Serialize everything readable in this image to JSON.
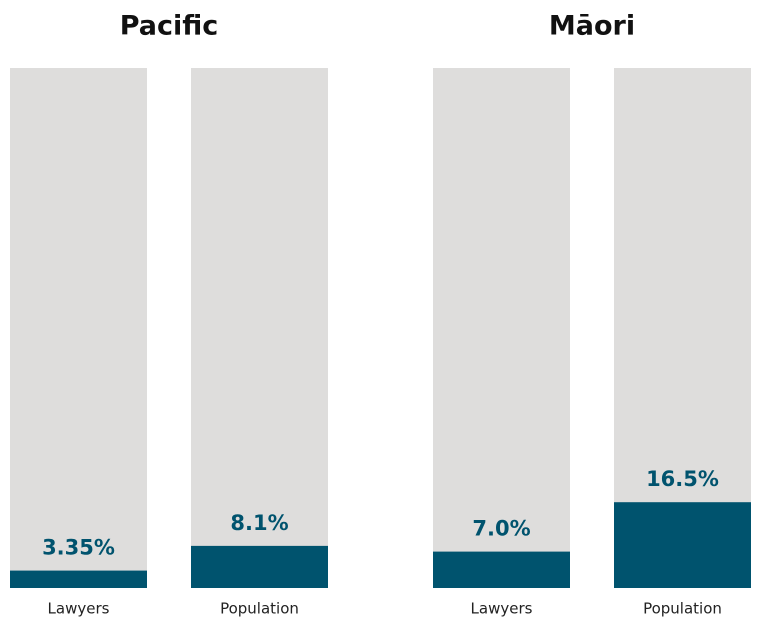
{
  "chart_data": [
    {
      "type": "bar",
      "title": "Pacific",
      "categories": [
        "Lawyers",
        "Population"
      ],
      "values": [
        3.35,
        8.1
      ],
      "value_labels": [
        "3.35%",
        "8.1%"
      ],
      "color": "#00536e",
      "track_color": "#dedddc",
      "ylim": [
        0,
        100
      ]
    },
    {
      "type": "bar",
      "title": "Māori",
      "categories": [
        "Lawyers",
        "Population"
      ],
      "values": [
        7.0,
        16.5
      ],
      "value_labels": [
        "7.0%",
        "16.5%"
      ],
      "color": "#00536e",
      "track_color": "#dedddc",
      "ylim": [
        0,
        100
      ]
    }
  ]
}
